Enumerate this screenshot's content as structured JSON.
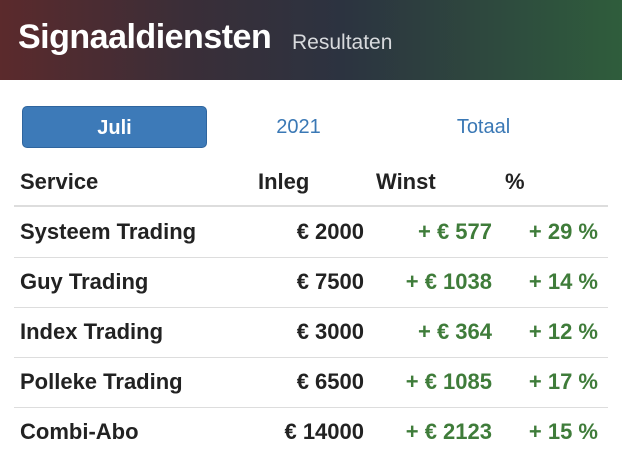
{
  "header": {
    "title": "Signaaldiensten",
    "subtitle": "Resultaten"
  },
  "tabs": [
    {
      "label": "Juli",
      "active": true
    },
    {
      "label": "2021",
      "active": false
    },
    {
      "label": "Totaal",
      "active": false
    }
  ],
  "table": {
    "columns": [
      "Service",
      "Inleg",
      "Winst",
      "%"
    ],
    "rows": [
      [
        "Systeem Trading",
        "€ 2000",
        "+ € 577",
        "+ 29 %"
      ],
      [
        "Guy Trading",
        "€ 7500",
        "+ € 1038",
        "+ 14 %"
      ],
      [
        "Index Trading",
        "€ 3000",
        "+ € 364",
        "+ 12 %"
      ],
      [
        "Polleke Trading",
        "€ 6500",
        "+ € 1085",
        "+ 17 %"
      ],
      [
        "Combi-Abo",
        "€ 14000",
        "+ € 2123",
        "+ 15 %"
      ]
    ]
  }
}
